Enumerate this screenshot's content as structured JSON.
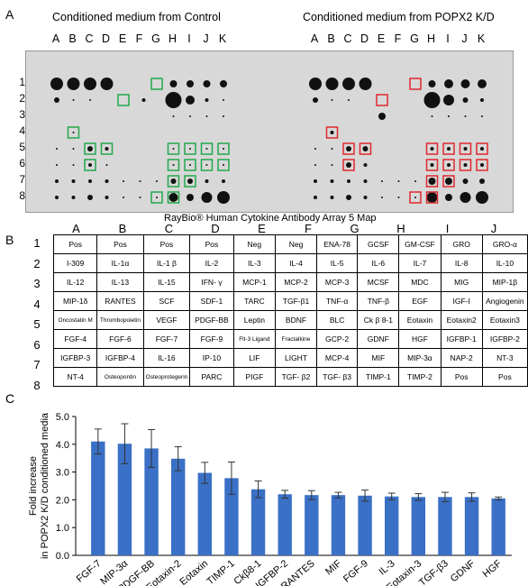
{
  "panels": {
    "a": "A",
    "b": "B",
    "c": "C"
  },
  "array_a": {
    "left_title": "Conditioned medium from Control",
    "right_title": "Conditioned medium from POPX2 K/D",
    "columns": [
      "A",
      "B",
      "C",
      "D",
      "E",
      "F",
      "G",
      "H",
      "I",
      "J",
      "K"
    ],
    "rows": [
      "1",
      "2",
      "3",
      "4",
      "5",
      "6",
      "7",
      "8"
    ],
    "highlight_colors": {
      "control": "#21a84a",
      "knockdown": "#e0282d"
    }
  },
  "map": {
    "title": "RayBio® Human Cytokine Antibody Array 5 Map",
    "columns": [
      "A",
      "B",
      "C",
      "D",
      "E",
      "F",
      "G",
      "H",
      "I",
      "J",
      "K"
    ],
    "rows": [
      {
        "label": "1",
        "cells": [
          "Pos",
          "Pos",
          "Pos",
          "Pos",
          "Neg",
          "Neg",
          "ENA-78",
          "GCSF",
          "GM-CSF",
          "GRO",
          "GRO-α"
        ]
      },
      {
        "label": "2",
        "cells": [
          "I-309",
          "IL-1α",
          "IL-1 β",
          "IL-2",
          "IL-3",
          "IL-4",
          "IL-5",
          "IL-6",
          "IL-7",
          "IL-8",
          "IL-10"
        ]
      },
      {
        "label": "3",
        "cells": [
          "IL-12",
          "IL-13",
          "IL-15",
          "IFN- γ",
          "MCP-1",
          "MCP-2",
          "MCP-3",
          "MCSF",
          "MDC",
          "MIG",
          "MIP-1β"
        ]
      },
      {
        "label": "4",
        "cells": [
          "MIP-1δ",
          "RANTES",
          "SCF",
          "SDF-1",
          "TARC",
          "TGF-β1",
          "TNF-α",
          "TNF-β",
          "EGF",
          "IGF-I",
          "Angiogenin"
        ]
      },
      {
        "label": "5",
        "cells": [
          "Oncostatin M",
          "Thrombopoietin",
          "VEGF",
          "PDGF-BB",
          "Leptin",
          "BDNF",
          "BLC",
          "Ck β 8-1",
          "Eotaxin",
          "Eotaxin2",
          "Eotaxin3"
        ]
      },
      {
        "label": "6",
        "cells": [
          "FGF-4",
          "FGF-6",
          "FGF-7",
          "FGF-9",
          "Flt-3 Ligand",
          "Fractalkine",
          "GCP-2",
          "GDNF",
          "HGF",
          "IGFBP-1",
          "IGFBP-2"
        ]
      },
      {
        "label": "7",
        "cells": [
          "IGFBP-3",
          "IGFBP-4",
          "IL-16",
          "IP-10",
          "LIF",
          "LIGHT",
          "MCP-4",
          "MIF",
          "MIP-3α",
          "NAP-2",
          "NT-3"
        ]
      },
      {
        "label": "8",
        "cells": [
          "NT-4",
          "Osteopontin",
          "Osteoprotegerin",
          "PARC",
          "PIGF",
          "TGF- β2",
          "TGF- β3",
          "TIMP-1",
          "TIMP-2",
          "Pos",
          "Pos"
        ]
      }
    ]
  },
  "chart_data": {
    "type": "bar",
    "title": "",
    "xlabel": "",
    "ylabel": "Fold increase in POPX2 K/D conditioned media",
    "ylabel_lines": [
      "Fold increase",
      "in POPX2 K/D conditioned media"
    ],
    "ylim": [
      0,
      5.0
    ],
    "yticks": [
      "0.0",
      "1.0",
      "2.0",
      "3.0",
      "4.0",
      "5.0"
    ],
    "bar_color": "#3a70c6",
    "categories": [
      "FGF-7",
      "MIP-3α",
      "PDGF-BB",
      "Eotaxin-2",
      "Eotaxin",
      "TIMP-1",
      "Ckβ8-1",
      "IGFBP-2",
      "RANTES",
      "MIF",
      "FGF-9",
      "IL-3",
      "Eotaxin-3",
      "TGF-β3",
      "GDNF",
      "HGF"
    ],
    "values": [
      4.1,
      4.02,
      3.85,
      3.48,
      2.97,
      2.78,
      2.38,
      2.2,
      2.17,
      2.17,
      2.15,
      2.12,
      2.1,
      2.1,
      2.1,
      2.05
    ],
    "errors": [
      0.45,
      0.72,
      0.68,
      0.43,
      0.38,
      0.58,
      0.3,
      0.14,
      0.16,
      0.1,
      0.2,
      0.12,
      0.12,
      0.17,
      0.15,
      0.05
    ]
  }
}
